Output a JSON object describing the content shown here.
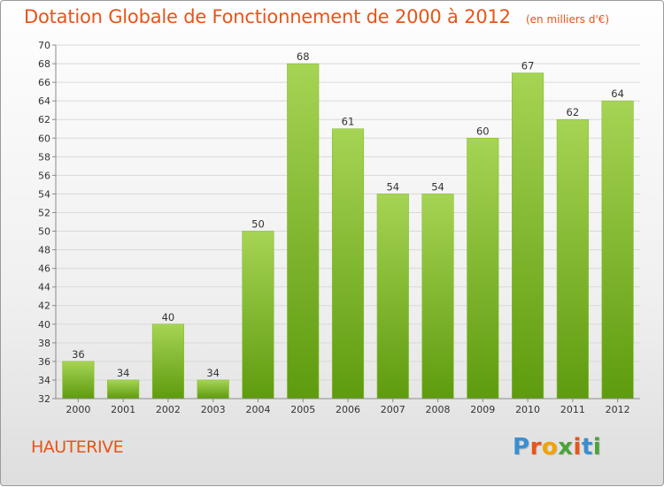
{
  "title": "Dotation Globale de Fonctionnement de 2000 à 2012",
  "unit": "(en milliers d'€)",
  "commune": "HAUTERIVE",
  "logo": {
    "text": "Proxiti",
    "letter_colors": [
      "#3b8fd1",
      "#e8541a",
      "#f2a300",
      "#4aa33a",
      "#e8541a",
      "#3b8fd1",
      "#4aa33a"
    ]
  },
  "colors": {
    "bar_light": "#a6d454",
    "bar_dark": "#5e9b0e",
    "title": "#e8541a",
    "grid": "#d9d9d9",
    "axis": "#8a8a8a"
  },
  "chart_data": {
    "type": "bar",
    "categories": [
      "2000",
      "2001",
      "2002",
      "2003",
      "2004",
      "2005",
      "2006",
      "2007",
      "2008",
      "2009",
      "2010",
      "2011",
      "2012"
    ],
    "values": [
      36,
      34,
      40,
      34,
      50,
      68,
      61,
      54,
      54,
      60,
      67,
      62,
      64
    ],
    "ylim": [
      32,
      70
    ],
    "ytick_step": 2,
    "grid": true,
    "legend": "none"
  }
}
